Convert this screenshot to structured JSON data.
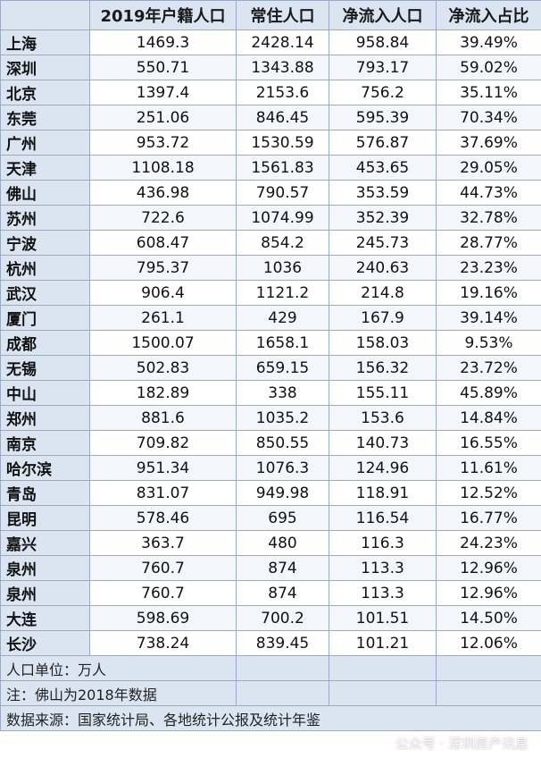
{
  "headers": [
    "",
    "2019年户籍人口",
    "常住人口",
    "净流入人口",
    "净流入占比"
  ],
  "rows": [
    [
      "上海",
      "1469.3",
      "2428.14",
      "958.84",
      "39.49%"
    ],
    [
      "深圳",
      "550.71",
      "1343.88",
      "793.17",
      "59.02%"
    ],
    [
      "北京",
      "1397.4",
      "2153.6",
      "756.2",
      "35.11%"
    ],
    [
      "东莞",
      "251.06",
      "846.45",
      "595.39",
      "70.34%"
    ],
    [
      "广州",
      "953.72",
      "1530.59",
      "576.87",
      "37.69%"
    ],
    [
      "天津",
      "1108.18",
      "1561.83",
      "453.65",
      "29.05%"
    ],
    [
      "佛山",
      "436.98",
      "790.57",
      "353.59",
      "44.73%"
    ],
    [
      "苏州",
      "722.6",
      "1074.99",
      "352.39",
      "32.78%"
    ],
    [
      "宁波",
      "608.47",
      "854.2",
      "245.73",
      "28.77%"
    ],
    [
      "杭州",
      "795.37",
      "1036",
      "240.63",
      "23.23%"
    ],
    [
      "武汉",
      "906.4",
      "1121.2",
      "214.8",
      "19.16%"
    ],
    [
      "厦门",
      "261.1",
      "429",
      "167.9",
      "39.14%"
    ],
    [
      "成都",
      "1500.07",
      "1658.1",
      "158.03",
      "9.53%"
    ],
    [
      "无锡",
      "502.83",
      "659.15",
      "156.32",
      "23.72%"
    ],
    [
      "中山",
      "182.89",
      "338",
      "155.11",
      "45.89%"
    ],
    [
      "郑州",
      "881.6",
      "1035.2",
      "153.6",
      "14.84%"
    ],
    [
      "南京",
      "709.82",
      "850.55",
      "140.73",
      "16.55%"
    ],
    [
      "哈尔滨",
      "951.34",
      "1076.3",
      "124.96",
      "11.61%"
    ],
    [
      "青岛",
      "831.07",
      "949.98",
      "118.91",
      "12.52%"
    ],
    [
      "昆明",
      "578.46",
      "695",
      "116.54",
      "16.77%"
    ],
    [
      "嘉兴",
      "363.7",
      "480",
      "116.3",
      "24.23%"
    ],
    [
      "泉州",
      "760.7",
      "874",
      "113.3",
      "12.96%"
    ],
    [
      "泉州",
      "760.7",
      "874",
      "113.3",
      "12.96%"
    ],
    [
      "大连",
      "598.69",
      "700.2",
      "101.51",
      "14.50%"
    ],
    [
      "长沙",
      "738.24",
      "839.45",
      "101.21",
      "12.06%"
    ]
  ],
  "notes": {
    "unit": "人口单位：万人",
    "foshan": "注：佛山为2018年数据",
    "source": "数据来源：国家统计局、各地统计公报及统计年鉴"
  },
  "watermark": "公众号 · 深圳房产讯息",
  "colors": {
    "header_bg": "#dbe5f1",
    "city_bg": "#dbe5f1",
    "border": "#9aa9c4"
  }
}
